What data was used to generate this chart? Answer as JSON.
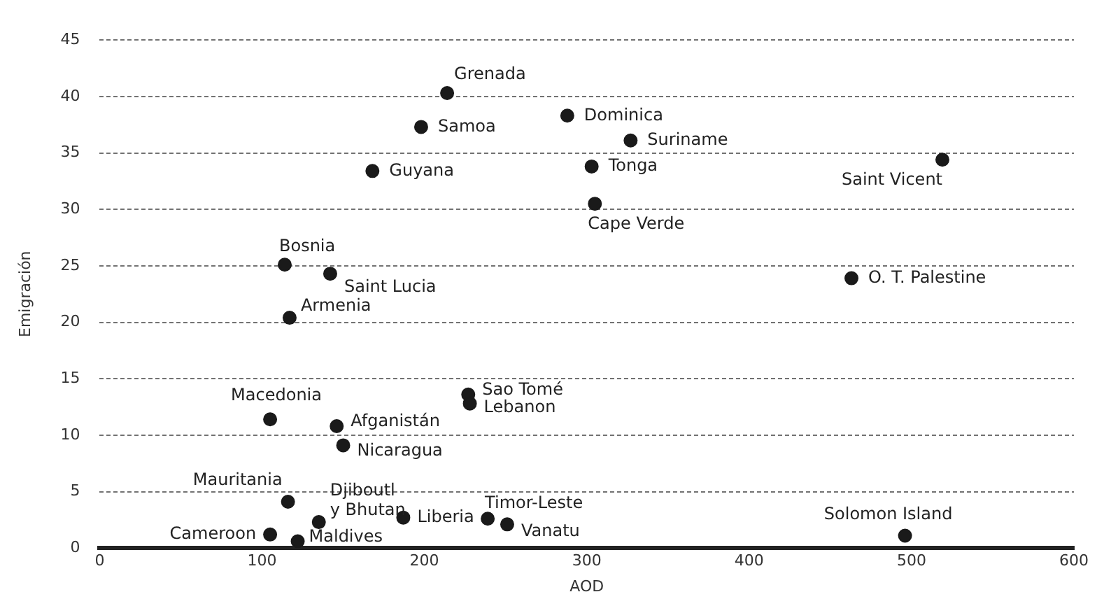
{
  "chart_data": {
    "type": "scatter",
    "xlabel": "AOD",
    "ylabel": "Emigración",
    "xlim": [
      0,
      600
    ],
    "xticks": [
      0,
      100,
      200,
      300,
      400,
      500,
      600
    ],
    "ylim": [
      0,
      45
    ],
    "yticks": [
      0,
      5,
      10,
      15,
      20,
      25,
      30,
      35,
      40,
      45
    ],
    "grid": "y",
    "legend": false,
    "marker": "circle",
    "series": [
      {
        "color": "#1a1a1a",
        "x": [
          214,
          288,
          198,
          327,
          168,
          303,
          305,
          519,
          114,
          142,
          463,
          117,
          227,
          228,
          105,
          146,
          150,
          116,
          135,
          105,
          122,
          187,
          239,
          251,
          496
        ],
        "values": [
          40.3,
          38.3,
          37.3,
          36.1,
          33.4,
          33.8,
          30.5,
          34.4,
          25.1,
          24.3,
          23.9,
          20.4,
          13.6,
          12.8,
          11.4,
          10.8,
          9.1,
          4.1,
          2.3,
          1.2,
          0.6,
          2.7,
          2.6,
          2.1,
          1.1
        ]
      }
    ],
    "annotations": [
      {
        "text": "Grenada",
        "x": 214,
        "y": 40.3
      },
      {
        "text": "Dominica",
        "x": 288,
        "y": 38.3
      },
      {
        "text": "Samoa",
        "x": 198,
        "y": 37.3
      },
      {
        "text": "Suriname",
        "x": 327,
        "y": 36.1
      },
      {
        "text": "Guyana",
        "x": 168,
        "y": 33.4
      },
      {
        "text": "Tonga",
        "x": 303,
        "y": 33.8
      },
      {
        "text": "Cape Verde",
        "x": 305,
        "y": 30.5
      },
      {
        "text": "Saint Vicent",
        "x": 519,
        "y": 34.4
      },
      {
        "text": "Bosnia",
        "x": 114,
        "y": 25.1
      },
      {
        "text": "Saint Lucia",
        "x": 142,
        "y": 24.3
      },
      {
        "text": "O. T. Palestine",
        "x": 463,
        "y": 23.9
      },
      {
        "text": "Armenia",
        "x": 117,
        "y": 20.4
      },
      {
        "text": "Sao Tomé",
        "x": 227,
        "y": 13.6
      },
      {
        "text": "Lebanon",
        "x": 228,
        "y": 12.8
      },
      {
        "text": "Macedonia",
        "x": 105,
        "y": 11.4
      },
      {
        "text": "Afganistán",
        "x": 146,
        "y": 10.8
      },
      {
        "text": "Nicaragua",
        "x": 150,
        "y": 9.1
      },
      {
        "text": "Mauritania",
        "x": 116,
        "y": 4.1
      },
      {
        "text": "Djiboutl y Bhutan",
        "x": 135,
        "y": 2.3
      },
      {
        "text": "Cameroon",
        "x": 105,
        "y": 1.2
      },
      {
        "text": "Maldives",
        "x": 122,
        "y": 0.6
      },
      {
        "text": "Liberia",
        "x": 187,
        "y": 2.7
      },
      {
        "text": "Timor-Leste",
        "x": 239,
        "y": 2.6
      },
      {
        "text": "Vanatu",
        "x": 251,
        "y": 2.1
      },
      {
        "text": "Solomon Island",
        "x": 496,
        "y": 1.1
      }
    ]
  }
}
